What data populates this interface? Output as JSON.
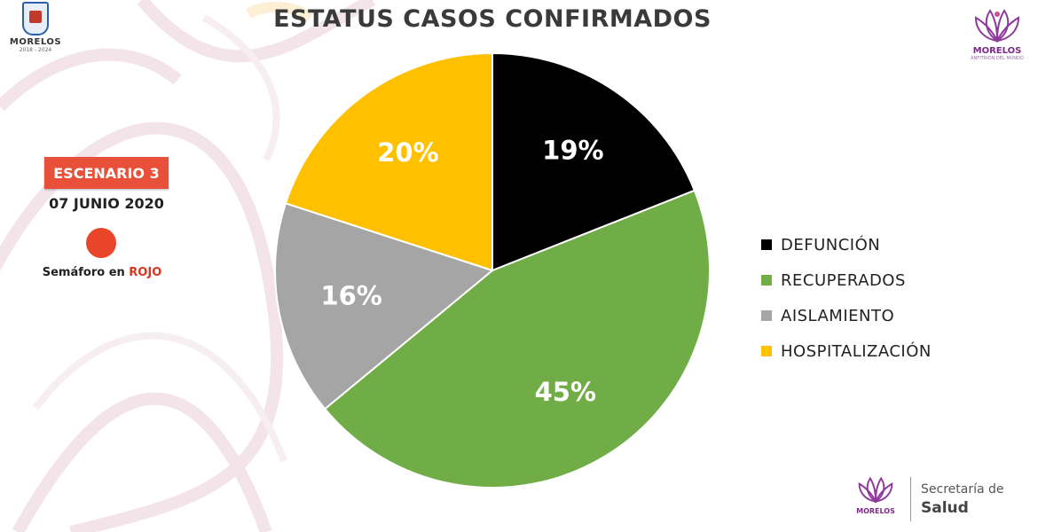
{
  "header": {
    "title": "ESTATUS CASOS CONFIRMADOS",
    "seal_name": "MORELOS",
    "seal_years": "2018 - 2024",
    "logo_name": "MORELOS",
    "logo_tagline": "ANFITRIÓN DEL MUNDO"
  },
  "side_panel": {
    "scenario": "ESCENARIO 3",
    "date": "07 JUNIO 2020",
    "semaforo_prefix": "Semáforo en ",
    "semaforo_color_word": "ROJO",
    "light_color": "#e8452a"
  },
  "chart_data": {
    "type": "pie",
    "title": "ESTATUS CASOS CONFIRMADOS",
    "categories": [
      "DEFUNCIÓN",
      "RECUPERADOS",
      "AISLAMIENTO",
      "HOSPITALIZACIÓN"
    ],
    "values": [
      19,
      45,
      16,
      20
    ],
    "labels": [
      "19%",
      "45%",
      "16%",
      "20%"
    ],
    "colors": [
      "#000000",
      "#70ad47",
      "#a5a5a5",
      "#ffc000"
    ],
    "start_angle": "top, clockwise",
    "legend_position": "right"
  },
  "footer": {
    "logo_name": "MORELOS",
    "line1": "Secretaría de",
    "line2": "Salud"
  }
}
